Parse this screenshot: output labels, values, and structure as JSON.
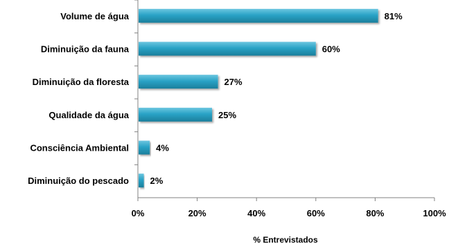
{
  "chart_data": {
    "type": "bar",
    "orientation": "horizontal",
    "categories": [
      "Volume de água",
      "Diminuição da fauna",
      "Diminuição da floresta",
      "Qualidade da água",
      "Consciência Ambiental",
      "Diminuição do pescado"
    ],
    "values": [
      81,
      60,
      27,
      25,
      4,
      2
    ],
    "value_labels": [
      "81%",
      "60%",
      "27%",
      "25%",
      "4%",
      "2%"
    ],
    "title": "",
    "xlabel": "% Entrevistados",
    "ylabel": "",
    "xlim": [
      0,
      100
    ],
    "xticks": [
      0,
      20,
      40,
      60,
      80,
      100
    ],
    "xtick_labels": [
      "0%",
      "20%",
      "40%",
      "60%",
      "80%",
      "100%"
    ],
    "grid": false,
    "legend": "none",
    "colors": {
      "bar": "#2aa3c6",
      "bar_light": "#6cc6e0",
      "bar_dark": "#1b7f9c",
      "axis": "#808080",
      "text": "#000000"
    }
  }
}
